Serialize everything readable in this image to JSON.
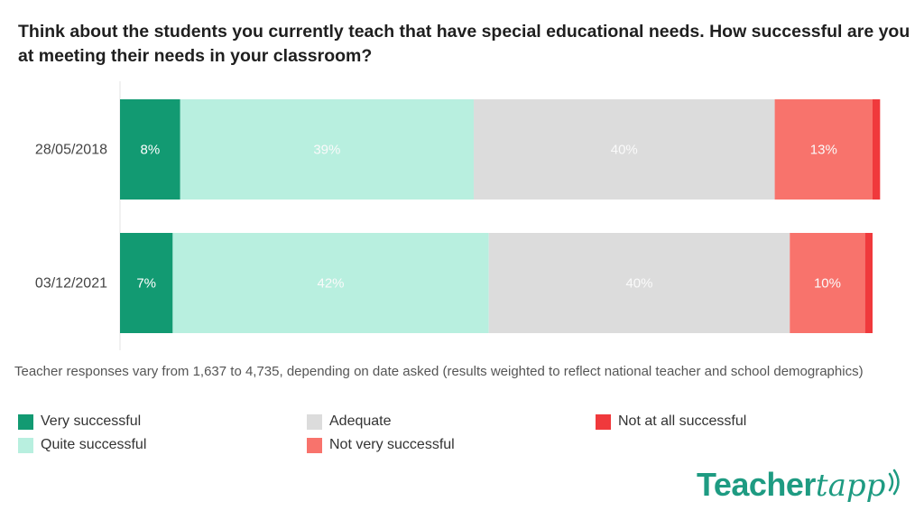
{
  "title": "Think about the students you currently teach that have special educational needs. How successful are you at meeting their needs in your classroom?",
  "footnote": "Teacher responses vary from 1,637 to 4,735, depending on date asked (results weighted to reflect national teacher and school demographics)",
  "logo": {
    "part1": "Teacher",
    "part2": "tapp"
  },
  "colors": {
    "very_successful": "#129a72",
    "quite_successful": "#b8efdf",
    "adequate": "#dcdcdc",
    "not_very_successful": "#f8736c",
    "not_at_all_successful": "#f0393c"
  },
  "legend": [
    {
      "label": "Very successful",
      "color": "#129a72"
    },
    {
      "label": "Adequate",
      "color": "#dcdcdc"
    },
    {
      "label": "Not at all successful",
      "color": "#f0393c"
    },
    {
      "label": "Quite successful",
      "color": "#b8efdf"
    },
    {
      "label": "Not very successful",
      "color": "#f8736c"
    }
  ],
  "chart_data": {
    "type": "bar",
    "orientation": "horizontal",
    "stacked": true,
    "categories": [
      "28/05/2018",
      "03/12/2021"
    ],
    "series": [
      {
        "name": "Very successful",
        "color": "#129a72",
        "values": [
          8,
          7
        ],
        "labels": [
          "8%",
          "7%"
        ]
      },
      {
        "name": "Quite successful",
        "color": "#b8efdf",
        "values": [
          39,
          42
        ],
        "labels": [
          "39%",
          "42%"
        ]
      },
      {
        "name": "Adequate",
        "color": "#dcdcdc",
        "values": [
          40,
          40
        ],
        "labels": [
          "40%",
          "40%"
        ]
      },
      {
        "name": "Not very successful",
        "color": "#f8736c",
        "values": [
          13,
          10
        ],
        "labels": [
          "13%",
          "10%"
        ]
      },
      {
        "name": "Not at all successful",
        "color": "#f0393c",
        "values": [
          1,
          1
        ],
        "labels": [
          "",
          ""
        ]
      }
    ],
    "xlim": [
      0,
      100
    ],
    "grid": false,
    "legend_position": "bottom"
  }
}
